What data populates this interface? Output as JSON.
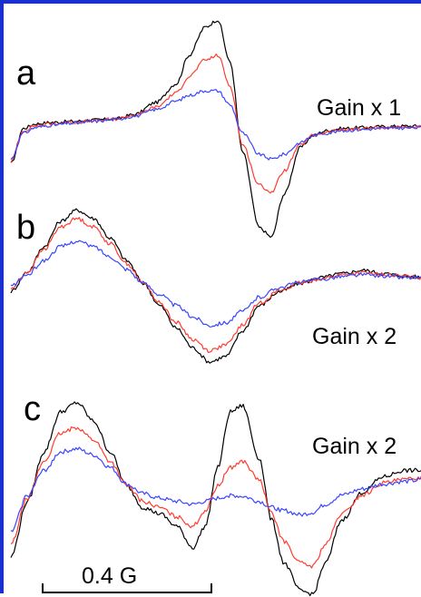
{
  "chart_data": {
    "type": "line",
    "xlabel": "",
    "ylabel": "",
    "grid": false,
    "scale_bar": {
      "label": "0.4 G",
      "length_field": 0.4
    },
    "series_colors": [
      "#000000",
      "#ff3b30",
      "#3a45ff"
    ],
    "panels": [
      {
        "letter": "a",
        "gain": "Gain x 1",
        "x": [
          0,
          0.03,
          0.06,
          0.1,
          0.15,
          0.2,
          0.25,
          0.3,
          0.35,
          0.4,
          0.43,
          0.47,
          0.5,
          0.53,
          0.56,
          0.6,
          0.63,
          0.66,
          0.7,
          0.73,
          0.76,
          0.8,
          0.85,
          0.9,
          0.95,
          1.0
        ],
        "series": [
          {
            "color": "#000000",
            "values": [
              -0.55,
              0.2,
              0.3,
              0.33,
              0.35,
              0.38,
              0.4,
              0.5,
              0.75,
              1.15,
              1.75,
              2.35,
              2.5,
              1.6,
              -0.3,
              -1.9,
              -2.1,
              -1.2,
              -0.2,
              0.05,
              0.15,
              0.2,
              0.22,
              0.24,
              0.25,
              0.25
            ]
          },
          {
            "color": "#ff3b30",
            "values": [
              -0.5,
              0.15,
              0.26,
              0.3,
              0.33,
              0.36,
              0.4,
              0.48,
              0.65,
              0.95,
              1.3,
              1.65,
              1.75,
              1.1,
              -0.15,
              -1.0,
              -1.15,
              -0.7,
              -0.15,
              0.05,
              0.12,
              0.17,
              0.2,
              0.22,
              0.23,
              0.23
            ]
          },
          {
            "color": "#3a45ff",
            "values": [
              -0.45,
              0.1,
              0.22,
              0.27,
              0.31,
              0.35,
              0.39,
              0.46,
              0.6,
              0.78,
              0.9,
              1.0,
              1.0,
              0.7,
              0.1,
              -0.35,
              -0.45,
              -0.35,
              -0.1,
              0.05,
              0.1,
              0.15,
              0.18,
              0.2,
              0.21,
              0.22
            ]
          }
        ]
      },
      {
        "letter": "b",
        "gain": "Gain x 2",
        "x": [
          0,
          0.04,
          0.08,
          0.12,
          0.16,
          0.2,
          0.24,
          0.28,
          0.32,
          0.36,
          0.4,
          0.44,
          0.48,
          0.52,
          0.56,
          0.6,
          0.65,
          0.7,
          0.75,
          0.8,
          0.85,
          0.9,
          0.95,
          1.0
        ],
        "series": [
          {
            "color": "#000000",
            "values": [
              -0.2,
              0.15,
              0.6,
              1.05,
              1.25,
              1.1,
              0.75,
              0.35,
              -0.05,
              -0.45,
              -0.85,
              -1.2,
              -1.45,
              -1.35,
              -0.9,
              -0.45,
              -0.2,
              -0.05,
              0.05,
              0.12,
              0.18,
              0.12,
              0.08,
              0.05
            ]
          },
          {
            "color": "#ff3b30",
            "values": [
              -0.15,
              0.15,
              0.55,
              0.95,
              1.1,
              0.95,
              0.65,
              0.3,
              -0.05,
              -0.4,
              -0.75,
              -1.05,
              -1.25,
              -1.15,
              -0.8,
              -0.4,
              -0.18,
              -0.05,
              0.03,
              0.1,
              0.13,
              0.1,
              0.07,
              0.05
            ]
          },
          {
            "color": "#3a45ff",
            "values": [
              -0.1,
              0.1,
              0.35,
              0.6,
              0.7,
              0.6,
              0.42,
              0.2,
              -0.05,
              -0.25,
              -0.45,
              -0.65,
              -0.8,
              -0.75,
              -0.55,
              -0.3,
              -0.12,
              -0.03,
              0.02,
              0.07,
              0.1,
              0.08,
              0.05,
              0.04
            ]
          }
        ]
      },
      {
        "letter": "c",
        "gain": "Gain x 2",
        "x": [
          0,
          0.04,
          0.08,
          0.12,
          0.16,
          0.2,
          0.24,
          0.28,
          0.32,
          0.36,
          0.4,
          0.44,
          0.47,
          0.5,
          0.53,
          0.56,
          0.6,
          0.63,
          0.66,
          0.7,
          0.73,
          0.76,
          0.8,
          0.85,
          0.9,
          0.95,
          1.0
        ],
        "series": [
          {
            "color": "#000000",
            "values": [
              -1.1,
              -0.2,
              0.6,
              1.25,
              1.4,
              1.1,
              0.6,
              0.05,
              -0.3,
              -0.4,
              -0.6,
              -0.95,
              -0.6,
              0.35,
              1.25,
              1.35,
              0.5,
              -0.5,
              -1.2,
              -1.65,
              -1.7,
              -1.2,
              -0.5,
              -0.05,
              0.2,
              0.3,
              0.3
            ]
          },
          {
            "color": "#ff3b30",
            "values": [
              -0.9,
              -0.15,
              0.45,
              0.9,
              1.0,
              0.8,
              0.45,
              0.05,
              -0.2,
              -0.3,
              -0.45,
              -0.6,
              -0.35,
              0.05,
              0.35,
              0.45,
              0.15,
              -0.4,
              -0.85,
              -1.2,
              -1.25,
              -0.9,
              -0.4,
              -0.1,
              0.1,
              0.15,
              0.2
            ]
          },
          {
            "color": "#3a45ff",
            "values": [
              -0.7,
              -0.1,
              0.3,
              0.6,
              0.65,
              0.55,
              0.35,
              0.08,
              -0.08,
              -0.15,
              -0.2,
              -0.25,
              -0.2,
              -0.15,
              -0.1,
              -0.12,
              -0.2,
              -0.3,
              -0.35,
              -0.42,
              -0.38,
              -0.25,
              -0.1,
              0.0,
              0.08,
              0.12,
              0.15
            ]
          }
        ]
      }
    ]
  }
}
